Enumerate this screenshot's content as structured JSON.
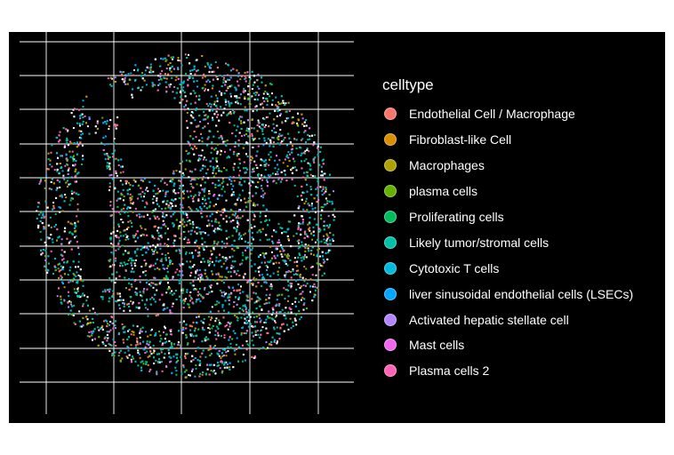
{
  "chart_data": {
    "type": "scatter",
    "description_of_marks": "spatial scatter of cells forming a circular tissue section",
    "legend": {
      "title": "celltype",
      "placement": "right",
      "entries": [
        {
          "name": "Endothelial Cell / Macrophage",
          "color": "#F8766D"
        },
        {
          "name": "Fibroblast-like Cell",
          "color": "#DB8E00"
        },
        {
          "name": "Macrophages",
          "color": "#AEA200"
        },
        {
          "name": "plasma cells",
          "color": "#64B200"
        },
        {
          "name": "Proliferating cells",
          "color": "#00BD5C"
        },
        {
          "name": "Likely tumor/stromal cells",
          "color": "#00C1A7"
        },
        {
          "name": "Cytotoxic T cells",
          "color": "#00BADE"
        },
        {
          "name": "liver sinusoidal endothelial cells (LSECs)",
          "color": "#00A6FF"
        },
        {
          "name": "Activated hepatic stellate cell",
          "color": "#B385FF"
        },
        {
          "name": "Mast cells",
          "color": "#EF67EB"
        },
        {
          "name": "Plasma cells 2",
          "color": "#FF63B6"
        }
      ]
    },
    "grid": true,
    "background": "#000000",
    "grid_color": "#ffffff",
    "axis_labels_shown": false
  }
}
